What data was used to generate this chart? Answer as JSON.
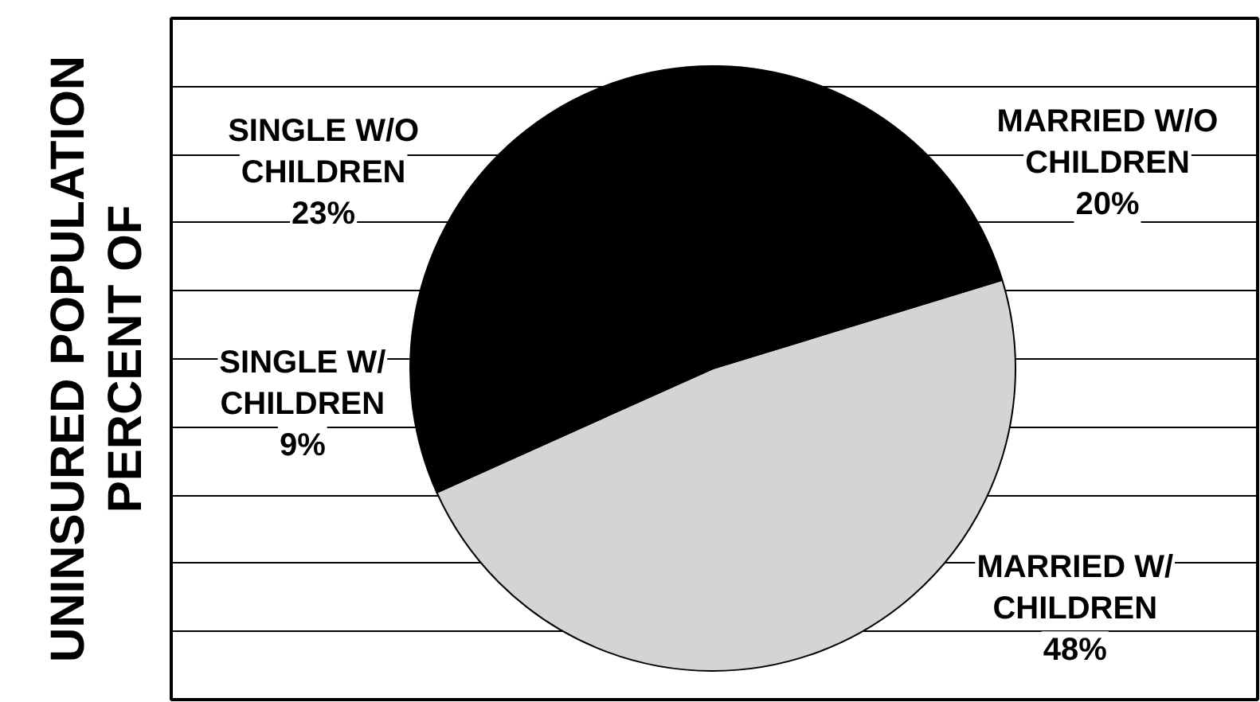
{
  "chart_data": {
    "type": "pie",
    "ylabel": "PERCENT OF\nUNINSURED POPULATION",
    "categories": [
      "MARRIED W/ CHILDREN",
      "SINGLE W/ CHILDREN",
      "SINGLE W/O CHILDREN",
      "MARRIED W/O CHILDREN"
    ],
    "values": [
      48,
      9,
      23,
      20
    ],
    "colors": [
      "#d4d4d4",
      "#000000",
      "#000000",
      "#000000"
    ],
    "value_labels": [
      "48%",
      "9%",
      "23%",
      "20%"
    ],
    "grid": "y"
  }
}
